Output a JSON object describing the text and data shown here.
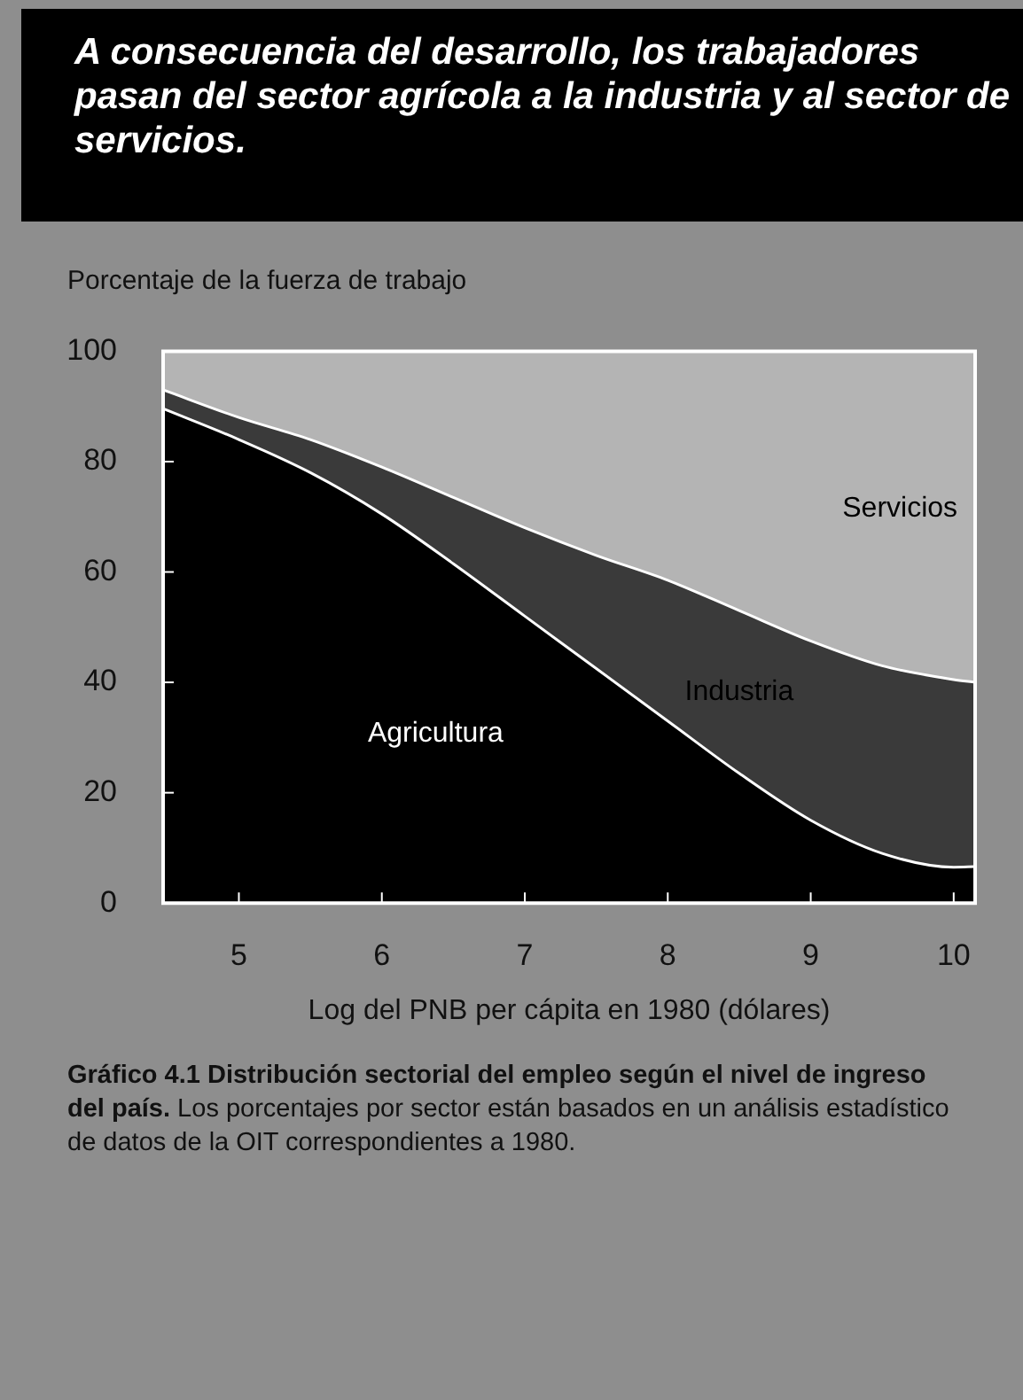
{
  "chart_data": {
    "type": "area",
    "stacked": true,
    "title": "A consecuencia del desarrollo, los trabajadores pasan del sector agrícola a la industria y al sector de servicios.",
    "ylabel": "Porcentaje de la fuerza de trabajo",
    "xlabel": "Log del PNB per cápita en 1980 (dólares)",
    "x": [
      4.47,
      5,
      5.5,
      6,
      6.5,
      7,
      7.5,
      8,
      8.5,
      9,
      9.5,
      10,
      10.15
    ],
    "xlim": [
      4.47,
      10.15
    ],
    "xticks": [
      5,
      6,
      7,
      8,
      9,
      10
    ],
    "ylim": [
      0,
      100
    ],
    "yticks": [
      0,
      20,
      40,
      60,
      80,
      100
    ],
    "series": [
      {
        "name": "Agricultura",
        "color": "#000000",
        "values": [
          89.6,
          84,
          78,
          70.5,
          61.5,
          52,
          42.5,
          33,
          23.5,
          15,
          9,
          6.5,
          6.6
        ]
      },
      {
        "name": "Industria",
        "color": "#3a3a3a",
        "values": [
          3.4,
          4,
          6,
          8.5,
          12,
          16,
          20.5,
          25.5,
          29.5,
          32.5,
          34,
          34,
          33.4
        ]
      },
      {
        "name": "Servicios",
        "color": "#b4b4b4",
        "values": [
          7,
          12,
          16,
          21,
          26.5,
          32,
          37,
          41.5,
          47,
          52.5,
          57,
          59.5,
          60
        ]
      }
    ],
    "annotations": [
      "Gráfico 4.1 Distribución sectorial del empleo según el nivel de ingreso del país.",
      "Los porcentajes por sector están basados en un análisis estadístico de datos de la OIT correspondientes a 1980."
    ]
  }
}
